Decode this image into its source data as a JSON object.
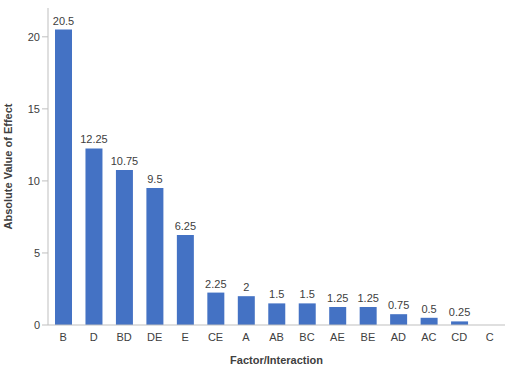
{
  "chart_data": {
    "type": "bar",
    "x_label": "Factor/Interaction",
    "y_label": "Absolute Value of Effect",
    "categories": [
      "B",
      "D",
      "BD",
      "DE",
      "E",
      "CE",
      "A",
      "AB",
      "BC",
      "AE",
      "BE",
      "AD",
      "AC",
      "CD",
      "C"
    ],
    "values": [
      20.5,
      12.25,
      10.75,
      9.5,
      6.25,
      2.25,
      2,
      1.5,
      1.5,
      1.25,
      1.25,
      0.75,
      0.5,
      0.25,
      0
    ],
    "color": "#4472c4",
    "ylim": [
      0,
      22
    ],
    "yticks": [
      0,
      5,
      10,
      15,
      20
    ],
    "grid": false,
    "data_labels": true
  }
}
